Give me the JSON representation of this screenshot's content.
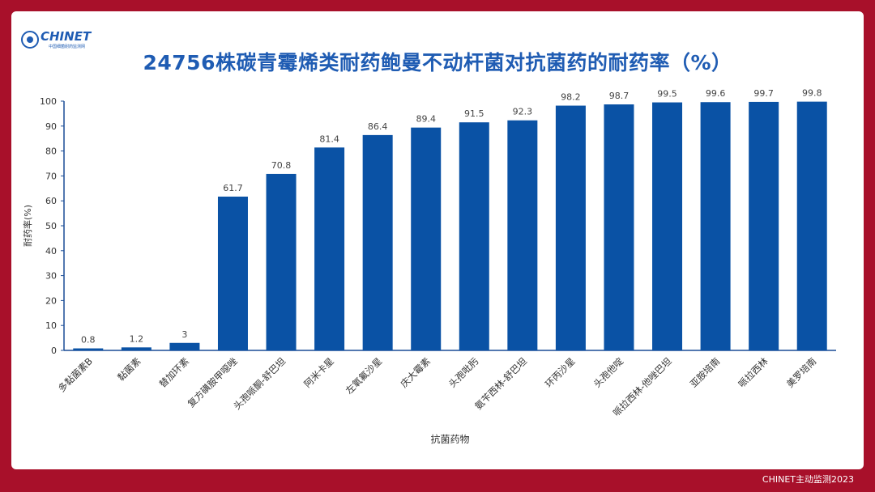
{
  "header": {
    "logo_text": "CHINET",
    "logo_subtext": "中国细菌耐药监测网"
  },
  "title": "24756株碳青霉烯类耐药鲍曼不动杆菌对抗菌药的耐药率（%）",
  "footer": "CHINET主动监测2023",
  "colors": {
    "bar": "#0a52a5",
    "title": "#1f5cb3",
    "frame": "#a8102a"
  },
  "chart_data": {
    "type": "bar",
    "title": "24756株碳青霉烯类耐药鲍曼不动杆菌对抗菌药的耐药率（%）",
    "xlabel": "抗菌药物",
    "ylabel": "耐药率(%)",
    "ylim": [
      0,
      100
    ],
    "yticks": [
      0,
      10,
      20,
      30,
      40,
      50,
      60,
      70,
      80,
      90,
      100
    ],
    "grid": false,
    "categories": [
      "多黏菌素B",
      "黏菌素",
      "替加环素",
      "复方磺胺甲噁唑",
      "头孢哌酮-舒巴坦",
      "阿米卡星",
      "左氧氟沙星",
      "庆大霉素",
      "头孢吡肟",
      "氨苄西林-舒巴坦",
      "环丙沙星",
      "头孢他啶",
      "哌拉西林-他唑巴坦",
      "亚胺培南",
      "哌拉西林",
      "美罗培南"
    ],
    "values": [
      0.8,
      1.2,
      3,
      61.7,
      70.8,
      81.4,
      86.4,
      89.4,
      91.5,
      92.3,
      98.2,
      98.7,
      99.5,
      99.6,
      99.7,
      99.8
    ]
  }
}
